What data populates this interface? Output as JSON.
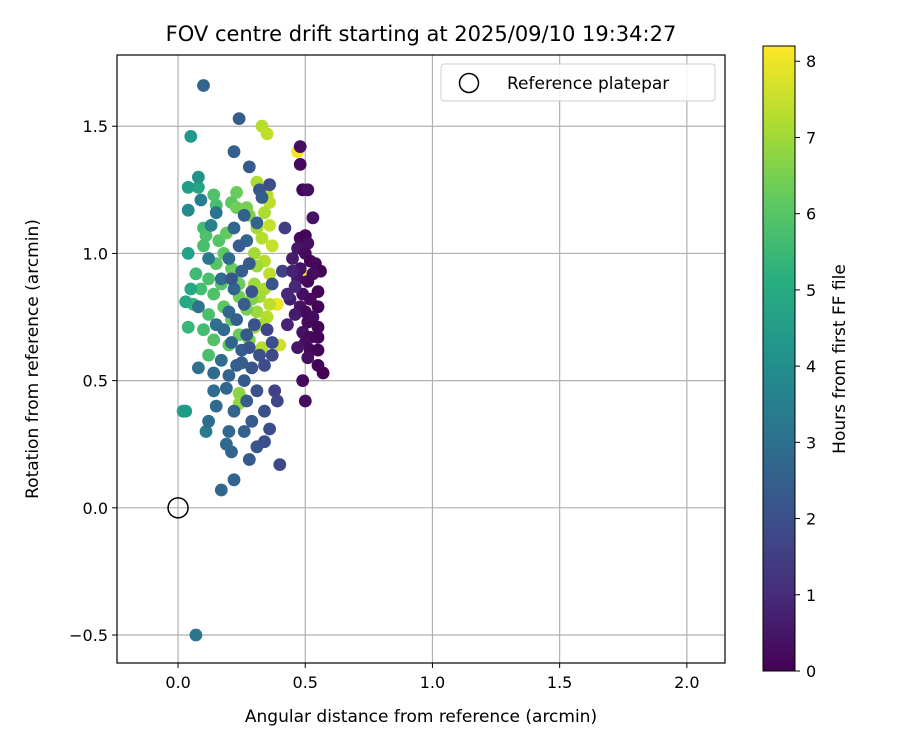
{
  "chart_data": {
    "type": "scatter",
    "title": "FOV centre drift starting at 2025/09/10 19:34:27",
    "xlabel": "Angular distance from reference (arcmin)",
    "ylabel": "Rotation from reference (arcmin)",
    "xlim": [
      -0.24,
      2.15
    ],
    "ylim": [
      -0.61,
      1.78
    ],
    "xticks": [
      0.0,
      0.5,
      1.0,
      1.5,
      2.0
    ],
    "xtick_labels": [
      "0.0",
      "0.5",
      "1.0",
      "1.5",
      "2.0"
    ],
    "yticks": [
      -0.5,
      0.0,
      0.5,
      1.0,
      1.5
    ],
    "ytick_labels": [
      "−0.5",
      "0.0",
      "0.5",
      "1.0",
      "1.5"
    ],
    "grid": true,
    "legend_placement": "top-right",
    "reference": {
      "name": "Reference platepar",
      "x": 0.0,
      "y": 0.0
    },
    "colorbar": {
      "label": "Hours from first FF file",
      "min": 0,
      "max": 8.2,
      "ticks": [
        0,
        1,
        2,
        3,
        4,
        5,
        6,
        7,
        8
      ],
      "tick_labels": [
        "0",
        "1",
        "2",
        "3",
        "4",
        "5",
        "6",
        "7",
        "8"
      ],
      "colormap": "viridis"
    },
    "points": [
      {
        "x": 0.47,
        "y": 1.4,
        "h": 8.1
      },
      {
        "x": 0.5,
        "y": 0.91,
        "h": 8.2
      },
      {
        "x": 0.39,
        "y": 0.8,
        "h": 8.0
      },
      {
        "x": 0.33,
        "y": 1.5,
        "h": 7.3
      },
      {
        "x": 0.35,
        "y": 1.47,
        "h": 7.4
      },
      {
        "x": 0.31,
        "y": 1.28,
        "h": 7.2
      },
      {
        "x": 0.35,
        "y": 1.23,
        "h": 7.3
      },
      {
        "x": 0.36,
        "y": 1.2,
        "h": 7.4
      },
      {
        "x": 0.34,
        "y": 1.16,
        "h": 7.2
      },
      {
        "x": 0.36,
        "y": 1.11,
        "h": 7.5
      },
      {
        "x": 0.31,
        "y": 1.1,
        "h": 7.1
      },
      {
        "x": 0.33,
        "y": 1.06,
        "h": 7.3
      },
      {
        "x": 0.37,
        "y": 1.03,
        "h": 7.5
      },
      {
        "x": 0.3,
        "y": 1.0,
        "h": 7.1
      },
      {
        "x": 0.34,
        "y": 0.97,
        "h": 7.3
      },
      {
        "x": 0.31,
        "y": 0.95,
        "h": 7.0
      },
      {
        "x": 0.36,
        "y": 0.92,
        "h": 7.4
      },
      {
        "x": 0.3,
        "y": 0.88,
        "h": 7.0
      },
      {
        "x": 0.34,
        "y": 0.86,
        "h": 7.2
      },
      {
        "x": 0.32,
        "y": 0.83,
        "h": 7.1
      },
      {
        "x": 0.36,
        "y": 0.8,
        "h": 7.4
      },
      {
        "x": 0.31,
        "y": 0.77,
        "h": 7.0
      },
      {
        "x": 0.35,
        "y": 0.75,
        "h": 7.3
      },
      {
        "x": 0.33,
        "y": 0.72,
        "h": 7.2
      },
      {
        "x": 0.3,
        "y": 0.71,
        "h": 6.9
      },
      {
        "x": 0.4,
        "y": 0.64,
        "h": 7.6
      },
      {
        "x": 0.33,
        "y": 0.63,
        "h": 7.3
      },
      {
        "x": 0.24,
        "y": 0.45,
        "h": 6.8
      },
      {
        "x": 0.25,
        "y": 0.43,
        "h": 6.7
      },
      {
        "x": 0.24,
        "y": 0.41,
        "h": 6.9
      },
      {
        "x": 0.23,
        "y": 1.24,
        "h": 6.3
      },
      {
        "x": 0.21,
        "y": 1.2,
        "h": 6.1
      },
      {
        "x": 0.23,
        "y": 1.18,
        "h": 6.4
      },
      {
        "x": 0.27,
        "y": 1.18,
        "h": 6.5
      },
      {
        "x": 0.28,
        "y": 1.15,
        "h": 6.6
      },
      {
        "x": 0.14,
        "y": 1.23,
        "h": 5.9
      },
      {
        "x": 0.15,
        "y": 1.19,
        "h": 5.8
      },
      {
        "x": 0.1,
        "y": 1.1,
        "h": 5.7
      },
      {
        "x": 0.11,
        "y": 1.07,
        "h": 5.9
      },
      {
        "x": 0.16,
        "y": 1.05,
        "h": 6.0
      },
      {
        "x": 0.1,
        "y": 1.03,
        "h": 5.8
      },
      {
        "x": 0.18,
        "y": 1.0,
        "h": 6.1
      },
      {
        "x": 0.15,
        "y": 0.96,
        "h": 6.0
      },
      {
        "x": 0.21,
        "y": 0.94,
        "h": 6.2
      },
      {
        "x": 0.07,
        "y": 0.92,
        "h": 5.6
      },
      {
        "x": 0.12,
        "y": 0.9,
        "h": 5.8
      },
      {
        "x": 0.17,
        "y": 0.88,
        "h": 6.0
      },
      {
        "x": 0.24,
        "y": 0.88,
        "h": 6.3
      },
      {
        "x": 0.09,
        "y": 0.86,
        "h": 5.7
      },
      {
        "x": 0.14,
        "y": 0.84,
        "h": 5.9
      },
      {
        "x": 0.24,
        "y": 0.83,
        "h": 6.4
      },
      {
        "x": 0.29,
        "y": 0.82,
        "h": 6.6
      },
      {
        "x": 0.06,
        "y": 0.8,
        "h": 5.5
      },
      {
        "x": 0.18,
        "y": 0.79,
        "h": 6.1
      },
      {
        "x": 0.27,
        "y": 0.78,
        "h": 6.5
      },
      {
        "x": 0.12,
        "y": 0.76,
        "h": 5.8
      },
      {
        "x": 0.21,
        "y": 0.74,
        "h": 6.2
      },
      {
        "x": 0.04,
        "y": 0.71,
        "h": 5.5
      },
      {
        "x": 0.1,
        "y": 0.7,
        "h": 5.7
      },
      {
        "x": 0.24,
        "y": 0.68,
        "h": 6.3
      },
      {
        "x": 0.14,
        "y": 0.66,
        "h": 5.9
      },
      {
        "x": 0.2,
        "y": 0.64,
        "h": 6.1
      },
      {
        "x": 0.12,
        "y": 0.6,
        "h": 5.8
      },
      {
        "x": 0.28,
        "y": 0.66,
        "h": 6.6
      },
      {
        "x": 0.22,
        "y": 0.92,
        "h": 6.4
      },
      {
        "x": 0.19,
        "y": 1.08,
        "h": 6.2
      },
      {
        "x": 0.08,
        "y": 1.26,
        "h": 4.8
      },
      {
        "x": 0.04,
        "y": 1.26,
        "h": 4.6
      },
      {
        "x": 0.05,
        "y": 1.46,
        "h": 4.4
      },
      {
        "x": 0.04,
        "y": 1.0,
        "h": 4.7
      },
      {
        "x": 0.03,
        "y": 0.81,
        "h": 4.9
      },
      {
        "x": 0.02,
        "y": 0.38,
        "h": 4.7
      },
      {
        "x": 0.03,
        "y": 0.38,
        "h": 4.5
      },
      {
        "x": 0.05,
        "y": 0.86,
        "h": 4.9
      },
      {
        "x": 0.08,
        "y": 1.3,
        "h": 4.2
      },
      {
        "x": 0.04,
        "y": 1.17,
        "h": 3.9
      },
      {
        "x": 0.13,
        "y": 1.11,
        "h": 3.6
      },
      {
        "x": 0.11,
        "y": 0.3,
        "h": 3.4
      },
      {
        "x": 0.07,
        "y": -0.5,
        "h": 3.2
      },
      {
        "x": 0.09,
        "y": 1.21,
        "h": 3.5
      },
      {
        "x": 0.15,
        "y": 1.16,
        "h": 3.2
      },
      {
        "x": 0.12,
        "y": 0.98,
        "h": 3.3
      },
      {
        "x": 0.08,
        "y": 0.79,
        "h": 3.1
      },
      {
        "x": 0.15,
        "y": 0.72,
        "h": 3.0
      },
      {
        "x": 0.14,
        "y": 0.46,
        "h": 2.9
      },
      {
        "x": 0.15,
        "y": 0.4,
        "h": 2.8
      },
      {
        "x": 0.12,
        "y": 0.34,
        "h": 2.9
      },
      {
        "x": 0.2,
        "y": 0.3,
        "h": 2.7
      },
      {
        "x": 0.1,
        "y": 1.66,
        "h": 2.6
      },
      {
        "x": 0.24,
        "y": 1.53,
        "h": 2.4
      },
      {
        "x": 0.22,
        "y": 1.4,
        "h": 2.5
      },
      {
        "x": 0.28,
        "y": 1.34,
        "h": 2.3
      },
      {
        "x": 0.32,
        "y": 1.25,
        "h": 2.2
      },
      {
        "x": 0.33,
        "y": 1.22,
        "h": 2.4
      },
      {
        "x": 0.26,
        "y": 1.15,
        "h": 2.5
      },
      {
        "x": 0.31,
        "y": 1.12,
        "h": 2.6
      },
      {
        "x": 0.22,
        "y": 1.1,
        "h": 2.7
      },
      {
        "x": 0.27,
        "y": 1.05,
        "h": 2.6
      },
      {
        "x": 0.24,
        "y": 1.03,
        "h": 2.4
      },
      {
        "x": 0.2,
        "y": 0.98,
        "h": 2.8
      },
      {
        "x": 0.28,
        "y": 0.96,
        "h": 2.3
      },
      {
        "x": 0.25,
        "y": 0.93,
        "h": 2.5
      },
      {
        "x": 0.17,
        "y": 0.9,
        "h": 2.9
      },
      {
        "x": 0.22,
        "y": 0.86,
        "h": 2.6
      },
      {
        "x": 0.29,
        "y": 0.85,
        "h": 2.2
      },
      {
        "x": 0.26,
        "y": 0.8,
        "h": 2.4
      },
      {
        "x": 0.2,
        "y": 0.77,
        "h": 2.7
      },
      {
        "x": 0.23,
        "y": 0.74,
        "h": 2.5
      },
      {
        "x": 0.3,
        "y": 0.72,
        "h": 2.1
      },
      {
        "x": 0.18,
        "y": 0.7,
        "h": 2.8
      },
      {
        "x": 0.27,
        "y": 0.68,
        "h": 2.3
      },
      {
        "x": 0.21,
        "y": 0.65,
        "h": 2.6
      },
      {
        "x": 0.25,
        "y": 0.62,
        "h": 2.4
      },
      {
        "x": 0.32,
        "y": 0.6,
        "h": 2.0
      },
      {
        "x": 0.17,
        "y": 0.58,
        "h": 2.9
      },
      {
        "x": 0.23,
        "y": 0.56,
        "h": 2.5
      },
      {
        "x": 0.29,
        "y": 0.55,
        "h": 2.2
      },
      {
        "x": 0.08,
        "y": 0.55,
        "h": 3.0
      },
      {
        "x": 0.2,
        "y": 0.52,
        "h": 2.6
      },
      {
        "x": 0.26,
        "y": 0.5,
        "h": 2.3
      },
      {
        "x": 0.19,
        "y": 0.47,
        "h": 2.7
      },
      {
        "x": 0.31,
        "y": 0.46,
        "h": 2.1
      },
      {
        "x": 0.27,
        "y": 0.42,
        "h": 2.4
      },
      {
        "x": 0.22,
        "y": 0.38,
        "h": 2.6
      },
      {
        "x": 0.34,
        "y": 0.38,
        "h": 2.0
      },
      {
        "x": 0.29,
        "y": 0.34,
        "h": 2.3
      },
      {
        "x": 0.26,
        "y": 0.3,
        "h": 2.5
      },
      {
        "x": 0.36,
        "y": 0.31,
        "h": 1.9
      },
      {
        "x": 0.19,
        "y": 0.25,
        "h": 2.8
      },
      {
        "x": 0.31,
        "y": 0.24,
        "h": 2.2
      },
      {
        "x": 0.34,
        "y": 0.26,
        "h": 2.0
      },
      {
        "x": 0.21,
        "y": 0.22,
        "h": 2.7
      },
      {
        "x": 0.28,
        "y": 0.19,
        "h": 2.3
      },
      {
        "x": 0.22,
        "y": 0.11,
        "h": 2.6
      },
      {
        "x": 0.17,
        "y": 0.07,
        "h": 2.7
      },
      {
        "x": 0.4,
        "y": 0.17,
        "h": 1.8
      },
      {
        "x": 0.39,
        "y": 0.42,
        "h": 1.7
      },
      {
        "x": 0.38,
        "y": 0.46,
        "h": 1.6
      },
      {
        "x": 0.34,
        "y": 0.56,
        "h": 1.9
      },
      {
        "x": 0.37,
        "y": 0.6,
        "h": 1.8
      },
      {
        "x": 0.41,
        "y": 0.93,
        "h": 1.6
      },
      {
        "x": 0.42,
        "y": 1.1,
        "h": 1.5
      },
      {
        "x": 0.36,
        "y": 1.27,
        "h": 1.9
      },
      {
        "x": 0.37,
        "y": 0.65,
        "h": 2.0
      },
      {
        "x": 0.35,
        "y": 0.7,
        "h": 1.7
      },
      {
        "x": 0.37,
        "y": 0.88,
        "h": 2.1
      },
      {
        "x": 0.21,
        "y": 0.9,
        "h": 2.2
      },
      {
        "x": 0.25,
        "y": 0.57,
        "h": 2.4
      },
      {
        "x": 0.28,
        "y": 0.63,
        "h": 2.1
      },
      {
        "x": 0.14,
        "y": 0.53,
        "h": 2.8
      },
      {
        "x": 0.48,
        "y": 1.42,
        "h": 0.3
      },
      {
        "x": 0.48,
        "y": 1.35,
        "h": 0.2
      },
      {
        "x": 0.49,
        "y": 1.25,
        "h": 0.1
      },
      {
        "x": 0.51,
        "y": 1.25,
        "h": 0.3
      },
      {
        "x": 0.53,
        "y": 1.14,
        "h": 0.4
      },
      {
        "x": 0.48,
        "y": 1.06,
        "h": 0.2
      },
      {
        "x": 0.5,
        "y": 1.07,
        "h": 0.1
      },
      {
        "x": 0.51,
        "y": 1.04,
        "h": 0.3
      },
      {
        "x": 0.47,
        "y": 1.02,
        "h": 0.5
      },
      {
        "x": 0.5,
        "y": 1.0,
        "h": 0.2
      },
      {
        "x": 0.45,
        "y": 0.98,
        "h": 0.6
      },
      {
        "x": 0.52,
        "y": 0.97,
        "h": 0.1
      },
      {
        "x": 0.54,
        "y": 0.96,
        "h": 0.2
      },
      {
        "x": 0.48,
        "y": 0.94,
        "h": 0.4
      },
      {
        "x": 0.56,
        "y": 0.93,
        "h": 0.1
      },
      {
        "x": 0.53,
        "y": 0.92,
        "h": 0.3
      },
      {
        "x": 0.47,
        "y": 0.9,
        "h": 0.5
      },
      {
        "x": 0.51,
        "y": 0.89,
        "h": 0.2
      },
      {
        "x": 0.55,
        "y": 0.85,
        "h": 0.1
      },
      {
        "x": 0.49,
        "y": 0.84,
        "h": 0.3
      },
      {
        "x": 0.44,
        "y": 0.82,
        "h": 0.7
      },
      {
        "x": 0.52,
        "y": 0.82,
        "h": 0.2
      },
      {
        "x": 0.48,
        "y": 0.79,
        "h": 0.4
      },
      {
        "x": 0.55,
        "y": 0.79,
        "h": 0.1
      },
      {
        "x": 0.5,
        "y": 0.77,
        "h": 0.2
      },
      {
        "x": 0.46,
        "y": 0.76,
        "h": 0.6
      },
      {
        "x": 0.53,
        "y": 0.75,
        "h": 0.3
      },
      {
        "x": 0.51,
        "y": 0.73,
        "h": 0.2
      },
      {
        "x": 0.43,
        "y": 0.72,
        "h": 0.8
      },
      {
        "x": 0.55,
        "y": 0.71,
        "h": 0.1
      },
      {
        "x": 0.49,
        "y": 0.69,
        "h": 0.4
      },
      {
        "x": 0.52,
        "y": 0.67,
        "h": 0.2
      },
      {
        "x": 0.55,
        "y": 0.67,
        "h": 0.1
      },
      {
        "x": 0.5,
        "y": 0.65,
        "h": 0.3
      },
      {
        "x": 0.47,
        "y": 0.63,
        "h": 0.5
      },
      {
        "x": 0.52,
        "y": 0.62,
        "h": 0.2
      },
      {
        "x": 0.55,
        "y": 0.62,
        "h": 0.1
      },
      {
        "x": 0.51,
        "y": 0.59,
        "h": 0.3
      },
      {
        "x": 0.55,
        "y": 0.56,
        "h": 0.1
      },
      {
        "x": 0.57,
        "y": 0.53,
        "h": 0.0
      },
      {
        "x": 0.49,
        "y": 0.5,
        "h": 0.2
      },
      {
        "x": 0.5,
        "y": 0.42,
        "h": 0.3
      },
      {
        "x": 0.43,
        "y": 0.84,
        "h": 1.0
      },
      {
        "x": 0.46,
        "y": 0.87,
        "h": 0.9
      },
      {
        "x": 0.45,
        "y": 0.93,
        "h": 0.8
      }
    ]
  }
}
